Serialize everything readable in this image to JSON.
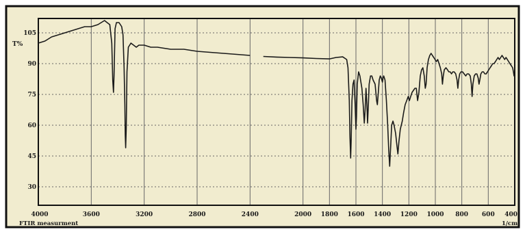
{
  "chart_data": {
    "type": "line",
    "title": "",
    "ylabel": "T%",
    "xlabel": "1/cm.",
    "footer_label": "FTIR measurment",
    "x_reversed": true,
    "xlim": [
      4000,
      400
    ],
    "ylim": [
      21,
      112
    ],
    "x_ticks": [
      4000,
      3600,
      3200,
      2800,
      2400,
      2000,
      1800,
      1600,
      1400,
      1200,
      1000,
      800,
      600,
      400
    ],
    "y_ticks": [
      105,
      90,
      75,
      60,
      45,
      30
    ],
    "grid": true,
    "colors": {
      "background": "#f1eccf",
      "trace": "#1a1a1a",
      "grid": "#666666",
      "frame": "#111111"
    },
    "series": [
      {
        "values": [
          [
            4000,
            100
          ],
          [
            3950,
            101
          ],
          [
            3900,
            103
          ],
          [
            3850,
            104
          ],
          [
            3800,
            105
          ],
          [
            3750,
            106
          ],
          [
            3700,
            107
          ],
          [
            3650,
            108
          ],
          [
            3600,
            108
          ],
          [
            3550,
            109
          ],
          [
            3500,
            111
          ],
          [
            3480,
            110
          ],
          [
            3460,
            109
          ],
          [
            3445,
            100
          ],
          [
            3438,
            82
          ],
          [
            3432,
            76
          ],
          [
            3428,
            84
          ],
          [
            3420,
            107
          ],
          [
            3410,
            110
          ],
          [
            3390,
            110
          ],
          [
            3370,
            108
          ],
          [
            3360,
            104
          ],
          [
            3352,
            88
          ],
          [
            3346,
            70
          ],
          [
            3343,
            55
          ],
          [
            3340,
            49
          ],
          [
            3336,
            58
          ],
          [
            3330,
            86
          ],
          [
            3320,
            98
          ],
          [
            3300,
            100
          ],
          [
            3280,
            99
          ],
          [
            3260,
            98
          ],
          [
            3240,
            99
          ],
          [
            3200,
            99
          ],
          [
            3150,
            98
          ],
          [
            3100,
            98
          ],
          [
            3000,
            97
          ],
          [
            2900,
            97
          ],
          [
            2800,
            96
          ],
          [
            2700,
            95.5
          ],
          [
            2600,
            95
          ],
          [
            2500,
            94.5
          ],
          [
            2400,
            94
          ],
          [
            2350,
            null
          ],
          [
            2300,
            93.5
          ],
          [
            2200,
            93.2
          ],
          [
            2100,
            93
          ],
          [
            2000,
            92.8
          ],
          [
            1900,
            92.5
          ],
          [
            1800,
            92.3
          ],
          [
            1750,
            93
          ],
          [
            1700,
            93.3
          ],
          [
            1670,
            92
          ],
          [
            1660,
            88
          ],
          [
            1650,
            72
          ],
          [
            1645,
            54
          ],
          [
            1640,
            44
          ],
          [
            1636,
            52
          ],
          [
            1630,
            72
          ],
          [
            1622,
            80
          ],
          [
            1614,
            82
          ],
          [
            1606,
            70
          ],
          [
            1600,
            58
          ],
          [
            1596,
            64
          ],
          [
            1590,
            80
          ],
          [
            1580,
            86
          ],
          [
            1570,
            84
          ],
          [
            1555,
            78
          ],
          [
            1545,
            70
          ],
          [
            1537,
            61
          ],
          [
            1530,
            68
          ],
          [
            1524,
            78
          ],
          [
            1517,
            70
          ],
          [
            1512,
            61
          ],
          [
            1506,
            70
          ],
          [
            1500,
            80
          ],
          [
            1490,
            84
          ],
          [
            1480,
            84
          ],
          [
            1470,
            82
          ],
          [
            1455,
            80
          ],
          [
            1444,
            72
          ],
          [
            1438,
            70
          ],
          [
            1432,
            75
          ],
          [
            1424,
            82
          ],
          [
            1416,
            84
          ],
          [
            1408,
            83
          ],
          [
            1400,
            81
          ],
          [
            1395,
            83
          ],
          [
            1390,
            84
          ],
          [
            1380,
            82
          ],
          [
            1370,
            72
          ],
          [
            1360,
            60
          ],
          [
            1352,
            48
          ],
          [
            1345,
            40
          ],
          [
            1337,
            50
          ],
          [
            1330,
            60
          ],
          [
            1320,
            62
          ],
          [
            1312,
            60
          ],
          [
            1300,
            56
          ],
          [
            1290,
            50
          ],
          [
            1283,
            46
          ],
          [
            1275,
            52
          ],
          [
            1265,
            58
          ],
          [
            1250,
            62
          ],
          [
            1240,
            66
          ],
          [
            1228,
            70
          ],
          [
            1216,
            72
          ],
          [
            1205,
            74
          ],
          [
            1196,
            72
          ],
          [
            1186,
            74
          ],
          [
            1176,
            76
          ],
          [
            1165,
            77
          ],
          [
            1154,
            78
          ],
          [
            1144,
            78
          ],
          [
            1134,
            72
          ],
          [
            1124,
            76
          ],
          [
            1114,
            84
          ],
          [
            1104,
            87
          ],
          [
            1094,
            88
          ],
          [
            1084,
            84
          ],
          [
            1076,
            78
          ],
          [
            1070,
            80
          ],
          [
            1062,
            88
          ],
          [
            1052,
            92
          ],
          [
            1042,
            94
          ],
          [
            1032,
            95
          ],
          [
            1022,
            94
          ],
          [
            1012,
            93
          ],
          [
            1002,
            92
          ],
          [
            992,
            91
          ],
          [
            982,
            92
          ],
          [
            972,
            90
          ],
          [
            962,
            88
          ],
          [
            952,
            85
          ],
          [
            946,
            80
          ],
          [
            940,
            84
          ],
          [
            932,
            87
          ],
          [
            920,
            88
          ],
          [
            908,
            87
          ],
          [
            898,
            86
          ],
          [
            888,
            86
          ],
          [
            878,
            85
          ],
          [
            868,
            86
          ],
          [
            858,
            86
          ],
          [
            846,
            85
          ],
          [
            836,
            82
          ],
          [
            830,
            78
          ],
          [
            824,
            82
          ],
          [
            816,
            85
          ],
          [
            806,
            86
          ],
          [
            794,
            86
          ],
          [
            782,
            85
          ],
          [
            770,
            84
          ],
          [
            760,
            85
          ],
          [
            748,
            85
          ],
          [
            736,
            84
          ],
          [
            728,
            80
          ],
          [
            722,
            74
          ],
          [
            716,
            80
          ],
          [
            706,
            84
          ],
          [
            696,
            85
          ],
          [
            686,
            85
          ],
          [
            676,
            83
          ],
          [
            670,
            80
          ],
          [
            664,
            82
          ],
          [
            656,
            85
          ],
          [
            646,
            86
          ],
          [
            636,
            86
          ],
          [
            626,
            85
          ],
          [
            616,
            85
          ],
          [
            606,
            86
          ],
          [
            596,
            87
          ],
          [
            586,
            88
          ],
          [
            576,
            89
          ],
          [
            566,
            90
          ],
          [
            556,
            90
          ],
          [
            546,
            91
          ],
          [
            536,
            92
          ],
          [
            526,
            93
          ],
          [
            516,
            92
          ],
          [
            506,
            93
          ],
          [
            496,
            94
          ],
          [
            486,
            93
          ],
          [
            476,
            92
          ],
          [
            466,
            93
          ],
          [
            456,
            92
          ],
          [
            446,
            91
          ],
          [
            436,
            90
          ],
          [
            426,
            89
          ],
          [
            416,
            88
          ],
          [
            410,
            86
          ],
          [
            405,
            84
          ],
          [
            400,
            84
          ]
        ]
      }
    ]
  }
}
